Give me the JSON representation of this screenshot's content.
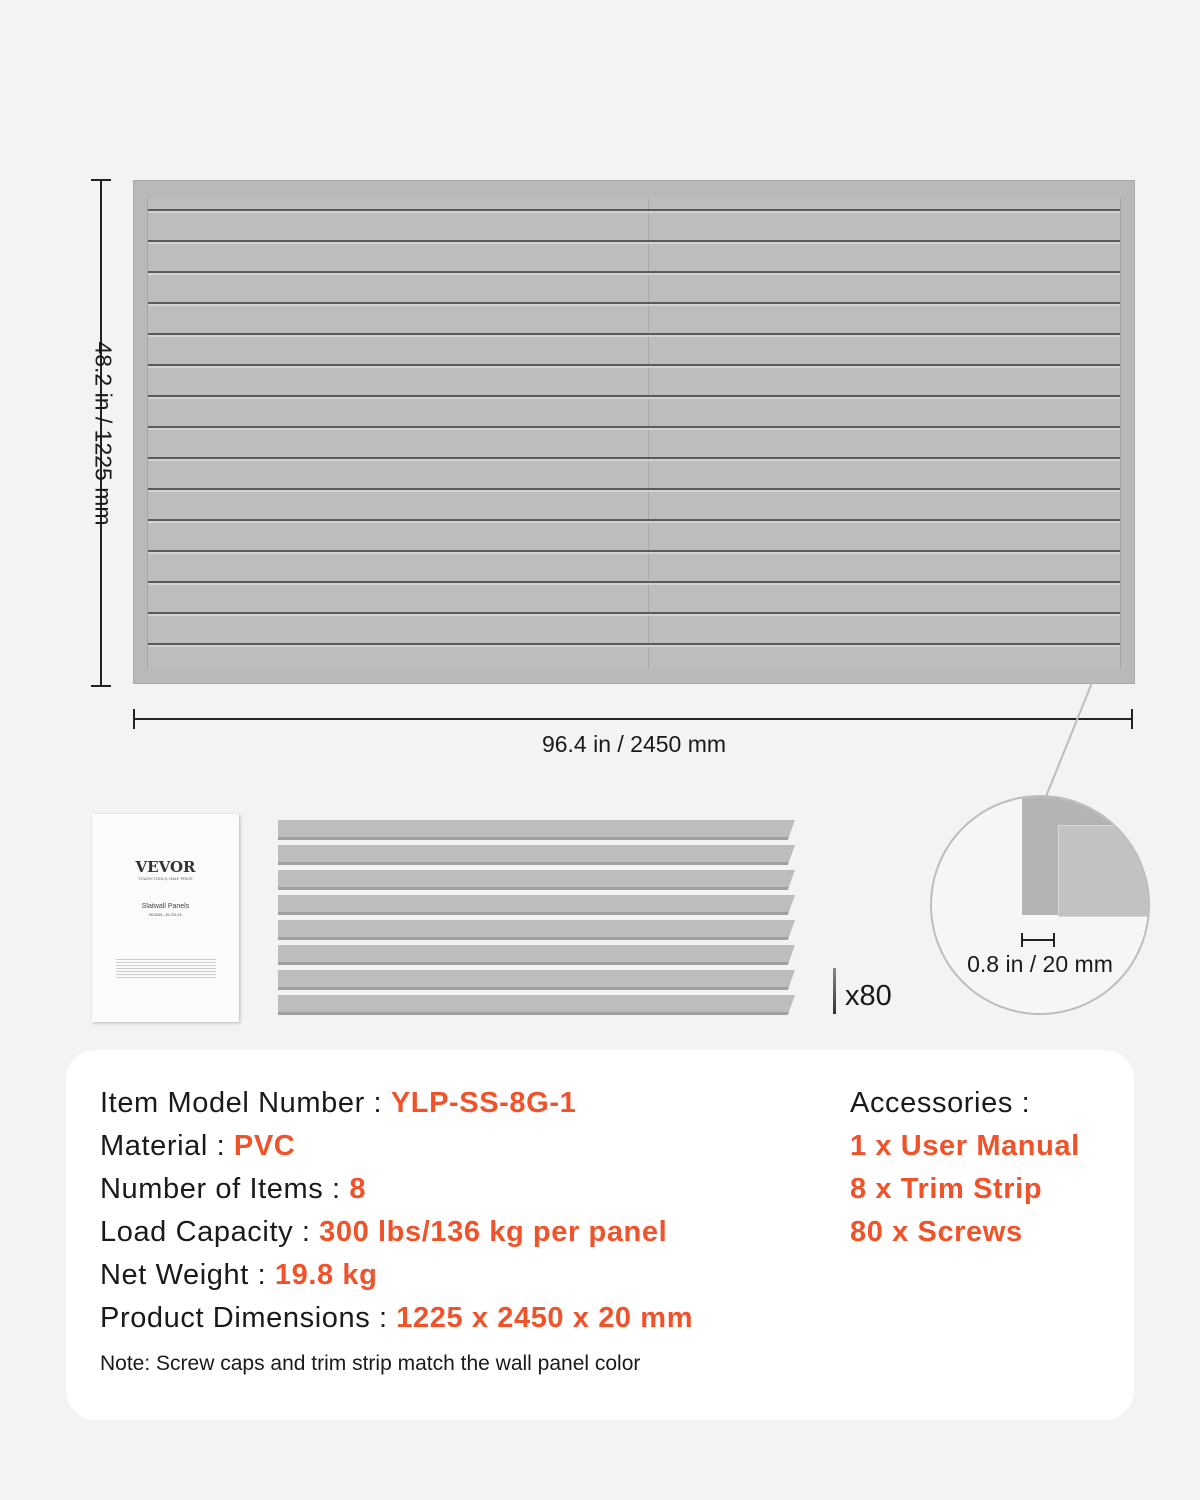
{
  "dimensions": {
    "height_label": "48.2 in / 1225 mm",
    "width_label": "96.4 in / 2450 mm",
    "thickness_label": "0.8 in / 20 mm"
  },
  "accessories_visual": {
    "manual": {
      "brand": "VEVOR",
      "tagline": "TOUGH TOOLS, HALF PRICE",
      "title": "Slatwall Panels",
      "model": "MODEL: KLCB-01"
    },
    "screws_count_label": "x80"
  },
  "specs": {
    "rows": [
      {
        "label": "Item Model Number : ",
        "value": "YLP-SS-8G-1"
      },
      {
        "label": "Material : ",
        "value": "PVC"
      },
      {
        "label": "Number of Items : ",
        "value": "8"
      },
      {
        "label": "Load Capacity : ",
        "value": "300 lbs/136 kg per panel"
      },
      {
        "label": "Net Weight : ",
        "value": "19.8 kg"
      },
      {
        "label": "Product Dimensions : ",
        "value": "1225 x 2450 x 20 mm"
      }
    ],
    "accessories_title": "Accessories :",
    "accessories": [
      "1 x User Manual",
      "8 x Trim Strip",
      "80 x Screws"
    ],
    "note": "Note: Screw caps and trim strip match the wall panel color"
  },
  "colors": {
    "accent": "#f0532a",
    "panel": "#bdbdbd",
    "background": "#f3f3f3"
  }
}
